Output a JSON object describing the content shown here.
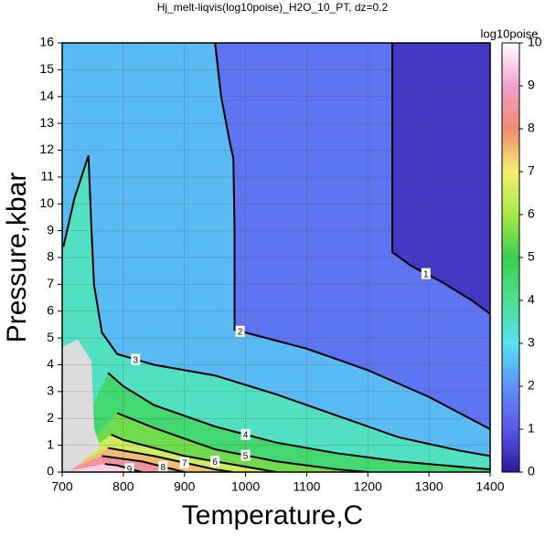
{
  "chart_data": {
    "type": "contour",
    "title": "Hj_melt-liqvis(log10poise)_H2O_10_PT, dz=0.2",
    "x_label": "Temperature,C",
    "y_label": "Pressure,kbar",
    "xlim": [
      700,
      1400
    ],
    "ylim": [
      0,
      16
    ],
    "xticks": [
      700,
      800,
      900,
      1000,
      1100,
      1200,
      1300,
      1400
    ],
    "yticks": [
      0,
      1,
      2,
      3,
      4,
      5,
      6,
      7,
      8,
      9,
      10,
      11,
      12,
      13,
      14,
      15,
      16
    ],
    "grid": true,
    "colorbar_label": "log10poise",
    "clim": [
      0,
      10
    ],
    "cticks": [
      0,
      1,
      2,
      3,
      4,
      5,
      6,
      7,
      8,
      9,
      10
    ],
    "colormap": [
      "#2a1a9c",
      "#5a56ea",
      "#5e92f6",
      "#56e2f2",
      "#4ede92",
      "#38d050",
      "#a8e848",
      "#f4f070",
      "#f08a70",
      "#f0a0d0",
      "#ffffff"
    ],
    "contours": [
      {
        "level": 1,
        "x": [
          1240,
          1240,
          1270,
          1320,
          1370,
          1400
        ],
        "y": [
          16,
          8.2,
          7.7,
          7.1,
          6.4,
          5.9
        ]
      },
      {
        "level": 2,
        "x": [
          950,
          960,
          975,
          980,
          982,
          982,
          1000,
          1100,
          1200,
          1300,
          1400
        ],
        "y": [
          16,
          14,
          12.2,
          11.7,
          9,
          5.3,
          5.2,
          4.6,
          3.8,
          2.8,
          1.6
        ]
      },
      {
        "level": 3,
        "x": [
          702,
          720,
          743,
          748,
          752,
          765,
          790,
          850,
          950,
          1050,
          1150,
          1250,
          1350,
          1400
        ],
        "y": [
          8.4,
          10.2,
          11.8,
          9,
          7,
          5.2,
          4.4,
          4,
          3.6,
          2.9,
          2.1,
          1.3,
          0.8,
          0.6
        ]
      },
      {
        "level": 4,
        "x": [
          775,
          800,
          850,
          950,
          1050,
          1150,
          1250,
          1400
        ],
        "y": [
          3.7,
          3.2,
          2.5,
          1.7,
          1.1,
          0.7,
          0.4,
          0.1
        ]
      },
      {
        "level": 5,
        "x": [
          790,
          850,
          950,
          1050,
          1150,
          1200
        ],
        "y": [
          2.2,
          1.65,
          0.85,
          0.4,
          0.1,
          0
        ]
      },
      {
        "level": 6,
        "x": [
          780,
          800,
          900,
          1000,
          1050
        ],
        "y": [
          1.4,
          1.2,
          0.6,
          0.2,
          0
        ]
      },
      {
        "level": 7,
        "x": [
          775,
          850,
          950,
          980
        ],
        "y": [
          0.9,
          0.6,
          0.1,
          0
        ]
      },
      {
        "level": 8,
        "x": [
          765,
          830,
          900
        ],
        "y": [
          0.6,
          0.4,
          0
        ]
      },
      {
        "level": 9,
        "x": [
          770,
          790,
          830
        ],
        "y": [
          0.3,
          0.25,
          0
        ]
      }
    ]
  }
}
